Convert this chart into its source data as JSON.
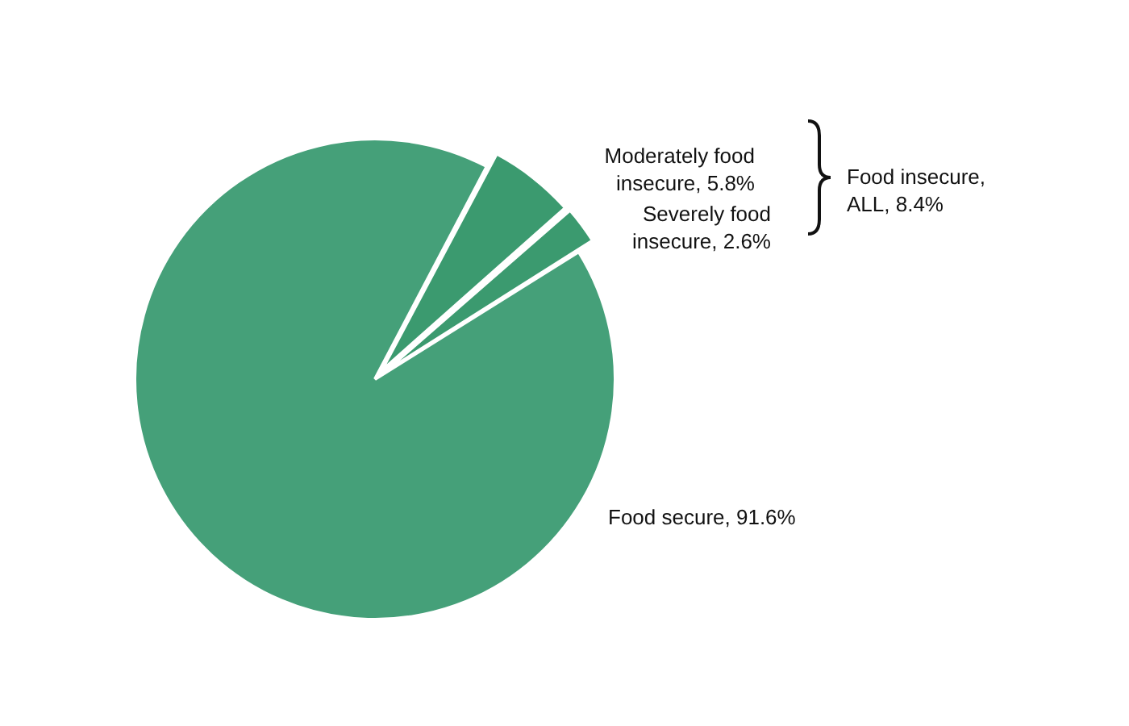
{
  "chart_data": {
    "type": "pie",
    "categories": [
      "Food secure",
      "Moderately food insecure",
      "Severely food insecure"
    ],
    "values": [
      91.6,
      5.8,
      2.6
    ],
    "value_labels": [
      "91.6%",
      "5.8%",
      "2.6%"
    ],
    "colors": [
      "#45a079",
      "#3b9a6f",
      "#3b9a6f"
    ],
    "annotations": [
      "Food insecure, ALL, 8.4%"
    ],
    "legend": false
  }
}
